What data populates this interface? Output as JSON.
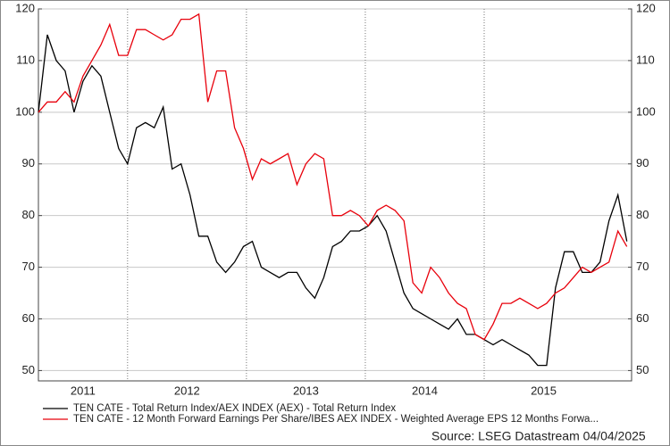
{
  "chart_data": {
    "type": "line",
    "x": [
      2011.25,
      2011.325,
      2011.4,
      2011.475,
      2011.55,
      2011.625,
      2011.7,
      2011.775,
      2011.85,
      2011.925,
      2012.0,
      2012.075,
      2012.15,
      2012.225,
      2012.3,
      2012.375,
      2012.45,
      2012.525,
      2012.6,
      2012.675,
      2012.75,
      2012.825,
      2012.9,
      2012.975,
      2013.05,
      2013.125,
      2013.2,
      2013.275,
      2013.35,
      2013.425,
      2013.5,
      2013.575,
      2013.65,
      2013.725,
      2013.8,
      2013.875,
      2013.95,
      2014.025,
      2014.1,
      2014.175,
      2014.25,
      2014.325,
      2014.4,
      2014.475,
      2014.55,
      2014.625,
      2014.7,
      2014.775,
      2014.85,
      2014.925,
      2015.0,
      2015.075,
      2015.15,
      2015.225,
      2015.3,
      2015.375,
      2015.45,
      2015.525,
      2015.6,
      2015.675,
      2015.75,
      2015.825,
      2015.9,
      2015.975,
      2016.05,
      2016.125,
      2016.2
    ],
    "series": [
      {
        "name": "TEN CATE - Total Return Index/AEX INDEX (AEX) - Total Return Index",
        "color": "#000000",
        "values": [
          100,
          115,
          110,
          108,
          100,
          106,
          109,
          107,
          100,
          93,
          90,
          97,
          98,
          97,
          101,
          89,
          90,
          84,
          76,
          76,
          71,
          69,
          71,
          74,
          75,
          70,
          69,
          68,
          69,
          69,
          66,
          64,
          68,
          74,
          75,
          77,
          77,
          78,
          80,
          77,
          71,
          65,
          62,
          61,
          60,
          59,
          58,
          60,
          57,
          57,
          56,
          55,
          56,
          55,
          54,
          53,
          51,
          51,
          66,
          73,
          73,
          69,
          69,
          71,
          79,
          84,
          75
        ]
      },
      {
        "name": "TEN CATE - 12 Month Forward Earnings Per Share/IBES AEX INDEX - Weighted Average EPS 12 Months Forwa...",
        "color": "#e8000b",
        "axis": "y2",
        "values": [
          100,
          102,
          102,
          104,
          102,
          107,
          110,
          113,
          117,
          111,
          111,
          116,
          116,
          115,
          114,
          115,
          118,
          118,
          119,
          102,
          108,
          108,
          97,
          93,
          87,
          91,
          90,
          91,
          92,
          86,
          90,
          92,
          91,
          80,
          80,
          81,
          80,
          78,
          81,
          82,
          81,
          79,
          67,
          65,
          70,
          68,
          65,
          63,
          62,
          57,
          56,
          59,
          63,
          63,
          64,
          63,
          62,
          63,
          65,
          66,
          68,
          70,
          69,
          70,
          71,
          77,
          74
        ]
      }
    ],
    "xlim": [
      2011.25,
      2016.24
    ],
    "xticks": [
      2011,
      2012,
      2013,
      2014,
      2015
    ],
    "ylim": [
      48,
      120
    ],
    "yticks": [
      50,
      60,
      70,
      80,
      90,
      100,
      110,
      120
    ],
    "y2lim": [
      48,
      120
    ],
    "y2ticks": [
      50,
      60,
      70,
      80,
      90,
      100,
      110,
      120
    ],
    "grid": true,
    "source": "Source: LSEG Datastream 04/04/2025"
  }
}
